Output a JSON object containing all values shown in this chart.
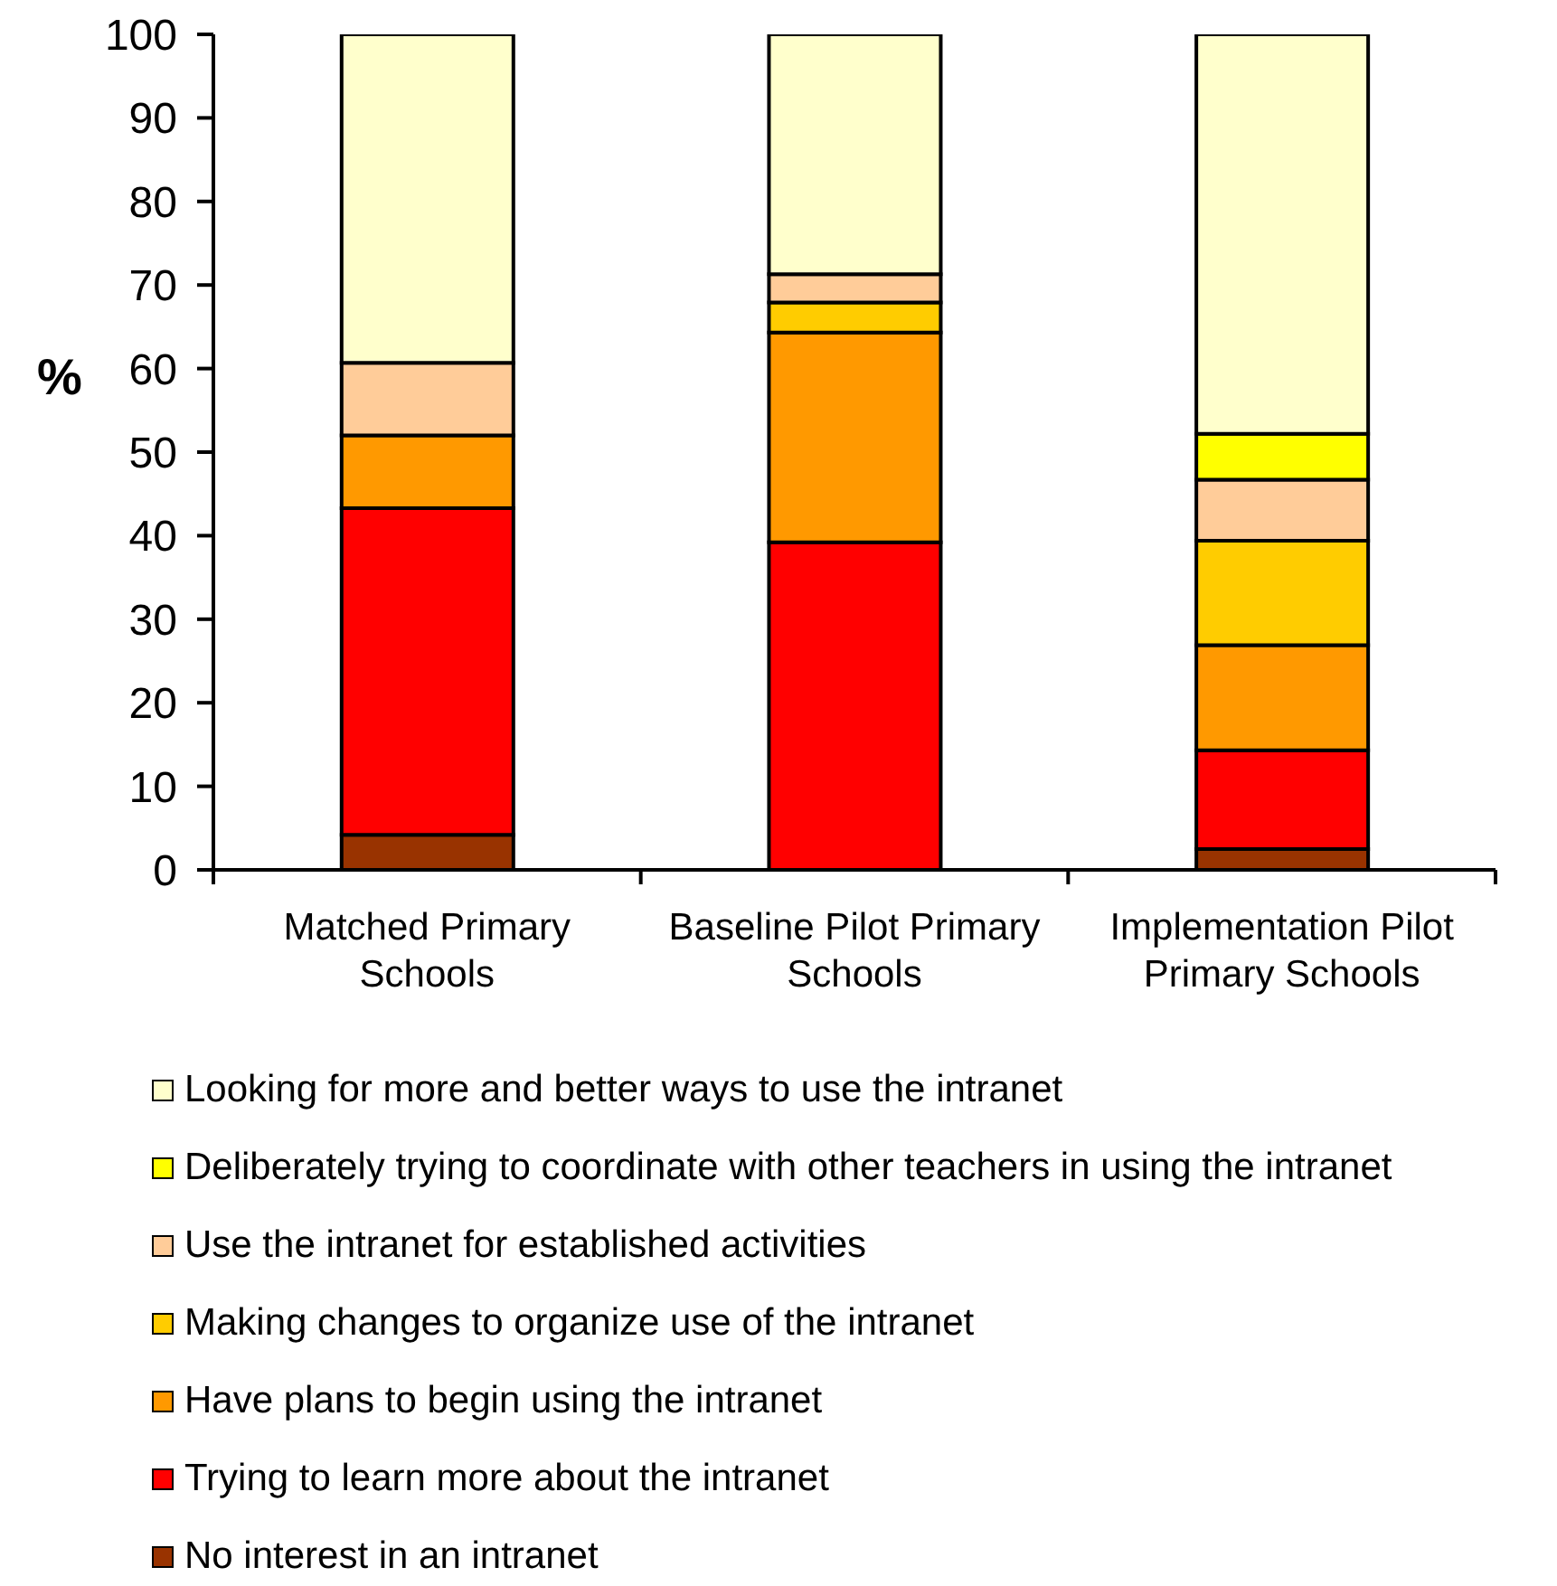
{
  "chart_data": {
    "type": "bar",
    "stacked": true,
    "ylabel": "%",
    "categories": [
      "Matched Primary Schools",
      "Baseline Pilot Primary Schools",
      "Implementation Pilot Primary Schools"
    ],
    "series": [
      {
        "name": "No interest in an intranet",
        "color": "#993300",
        "values": [
          4.2,
          0,
          2.5
        ]
      },
      {
        "name": "Trying to learn more about the intranet",
        "color": "#ff0000",
        "values": [
          39.1,
          39.2,
          11.8
        ]
      },
      {
        "name": "Have plans to begin using the intranet",
        "color": "#ff9900",
        "values": [
          8.7,
          25.1,
          12.6
        ]
      },
      {
        "name": "Making changes to organize use of the intranet",
        "color": "#ffcc00",
        "values": [
          0,
          3.6,
          12.5
        ]
      },
      {
        "name": "Use the intranet for established activities",
        "color": "#ffcc99",
        "values": [
          8.7,
          3.4,
          7.3
        ]
      },
      {
        "name": "Deliberately trying to coordinate with other teachers in using the intranet",
        "color": "#ffff00",
        "values": [
          0,
          0,
          5.5
        ]
      },
      {
        "name": "Looking for more and better ways to use the intranet",
        "color": "#ffffcc",
        "values": [
          39.3,
          28.7,
          47.8
        ]
      }
    ],
    "ylim": [
      0,
      100
    ],
    "yticks": [
      0,
      10,
      20,
      30,
      40,
      50,
      60,
      70,
      80,
      90,
      100
    ],
    "legend": "bottom"
  }
}
